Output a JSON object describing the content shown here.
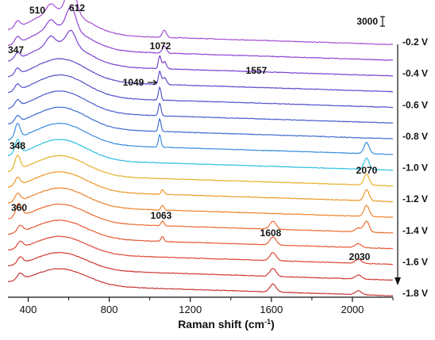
{
  "chart_data": {
    "type": "line",
    "title": "",
    "xlabel": "Raman shift (cm",
    "xlabel_sup": "-1",
    "xlabel_close": ")",
    "ylabel": "",
    "xlim": [
      300,
      2200
    ],
    "x_ticks": [
      {
        "value": 400,
        "label": "400"
      },
      {
        "value": 800,
        "label": "800"
      },
      {
        "value": 1200,
        "label": "1200"
      },
      {
        "value": 1600,
        "label": "1600"
      },
      {
        "value": 2000,
        "label": "2000"
      }
    ],
    "scale_bar": {
      "label": "3000"
    },
    "grid": false,
    "legend": "none",
    "series": [
      {
        "name": "-0.2 V",
        "color": "#a64fd6"
      },
      {
        "name": "",
        "color": "#8f45d3"
      },
      {
        "name": "-0.4 V",
        "color": "#7a44d2"
      },
      {
        "name": "",
        "color": "#6549cd"
      },
      {
        "name": "-0.6 V",
        "color": "#5552cb"
      },
      {
        "name": "",
        "color": "#4a5fcc"
      },
      {
        "name": "-0.8 V",
        "color": "#3f6ecf"
      },
      {
        "name": "",
        "color": "#3a8ee0"
      },
      {
        "name": "-1.0 V",
        "color": "#30c0e0"
      },
      {
        "name": "",
        "color": "#e6b22a"
      },
      {
        "name": "-1.2 V",
        "color": "#ee9a2c"
      },
      {
        "name": "",
        "color": "#ee842e"
      },
      {
        "name": "-1.4 V",
        "color": "#ec6e32"
      },
      {
        "name": "",
        "color": "#e65a34"
      },
      {
        "name": "-1.6 V",
        "color": "#de4a36"
      },
      {
        "name": "",
        "color": "#d23c38"
      },
      {
        "name": "-1.8 V",
        "color": "#c8383a"
      }
    ],
    "annotations": [
      {
        "text": "510",
        "x": 510
      },
      {
        "text": "612",
        "x": 612
      },
      {
        "text": "347",
        "x": 347
      },
      {
        "text": "1072",
        "x": 1072
      },
      {
        "text": "1557",
        "x": 1557
      },
      {
        "text": "1049",
        "x": 1049
      },
      {
        "text": "348",
        "x": 348
      },
      {
        "text": "2070",
        "x": 2070
      },
      {
        "text": "360",
        "x": 360
      },
      {
        "text": "1063",
        "x": 1063
      },
      {
        "text": "1608",
        "x": 1608
      },
      {
        "text": "2030",
        "x": 2030
      }
    ]
  }
}
